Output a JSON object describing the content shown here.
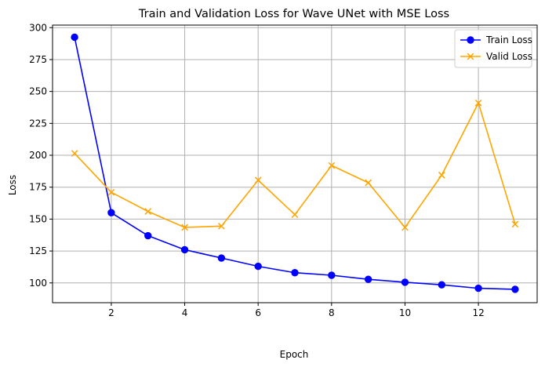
{
  "chart_data": {
    "type": "line",
    "title": "Train and Validation Loss for Wave UNet with MSE Loss",
    "xlabel": "Epoch",
    "ylabel": "Loss",
    "x": [
      1,
      2,
      3,
      4,
      5,
      6,
      7,
      8,
      9,
      10,
      11,
      12,
      13
    ],
    "xlim": [
      0.4,
      13.6
    ],
    "ylim": [
      84.5,
      302
    ],
    "xticks": [
      2,
      4,
      6,
      8,
      10,
      12
    ],
    "yticks": [
      100,
      125,
      150,
      175,
      200,
      225,
      250,
      275,
      300
    ],
    "grid": true,
    "legend_position": "top-right",
    "series": [
      {
        "name": "Train Loss",
        "color": "#0000ff",
        "marker": "circle",
        "values": [
          292.5,
          155.0,
          137.0,
          126.0,
          119.5,
          113.0,
          108.0,
          106.0,
          102.8,
          100.5,
          98.5,
          95.8,
          95.0
        ]
      },
      {
        "name": "Valid Loss",
        "color": "#ffa500",
        "marker": "x",
        "values": [
          201.5,
          171.0,
          156.0,
          143.5,
          144.5,
          180.5,
          153.5,
          192.0,
          178.5,
          143.5,
          184.5,
          241.0,
          146.0
        ]
      }
    ]
  }
}
